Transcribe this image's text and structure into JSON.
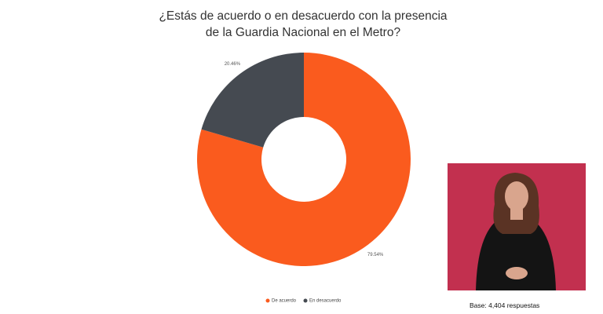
{
  "chart_data": {
    "type": "donut",
    "title": "¿Estás de acuerdo o en desacuerdo con la presencia de la Guardia Nacional en el Metro?",
    "categories": [
      "De acuerdo",
      "En desacuerdo"
    ],
    "values": [
      79.54,
      20.46
    ],
    "value_labels": [
      "79.54%",
      "20.46%"
    ],
    "colors": [
      "#fa5b1e",
      "#454a51"
    ],
    "footnote": "Base: 4,404 respuestas"
  }
}
